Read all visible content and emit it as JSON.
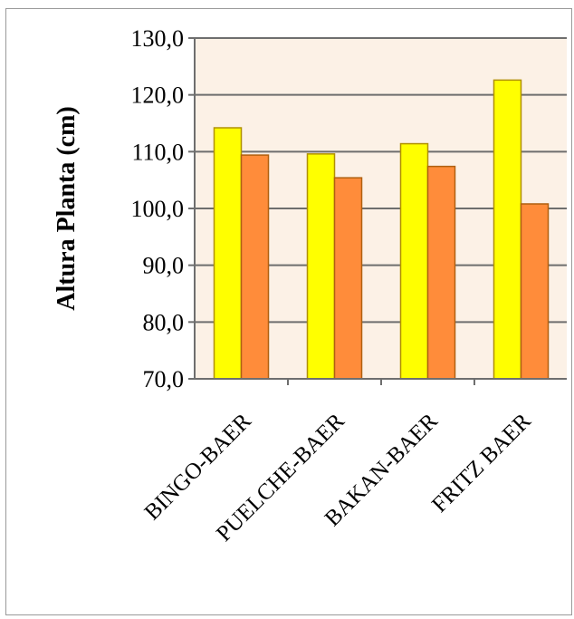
{
  "chart_data": {
    "type": "bar",
    "title": "",
    "xlabel": "",
    "ylabel": "Altura Planta (cm)",
    "ylim": [
      70,
      130
    ],
    "yticks": [
      70,
      80,
      90,
      100,
      110,
      120,
      130
    ],
    "ytick_labels": [
      "70,0",
      "80,0",
      "90,0",
      "100,0",
      "110,0",
      "120,0",
      "130,0"
    ],
    "categories": [
      "BINGO-BAER",
      "PUELCHE-BAER",
      "BAKAN-BAER",
      "FRITZ BAER"
    ],
    "series": [
      {
        "values": [
          114.2,
          109.6,
          111.4,
          122.6
        ],
        "color": "#ffff00",
        "stroke": "#b09000"
      },
      {
        "values": [
          109.4,
          105.4,
          107.4,
          100.8
        ],
        "color": "#ff8c3a",
        "stroke": "#b06010"
      }
    ],
    "plot_background": "#fcf1e6",
    "grid": true
  }
}
